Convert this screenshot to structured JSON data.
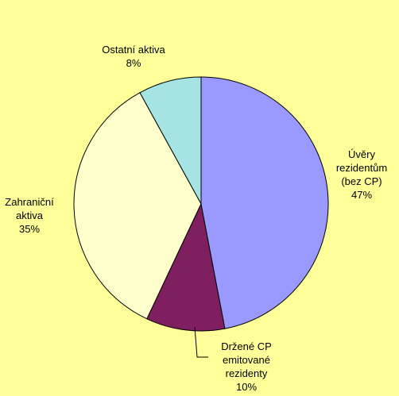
{
  "chart_data": {
    "type": "pie",
    "categories": [
      "Úvěry rezidentům (bez CP)",
      "Držené CP emitované rezidenty",
      "Zahraniční aktiva",
      "Ostatní aktiva"
    ],
    "values": [
      47,
      10,
      35,
      8
    ],
    "value_labels": [
      "47%",
      "10%",
      "35%",
      "8%"
    ],
    "colors": [
      "#9999ff",
      "#7f1f5f",
      "#ffffcc",
      "#a6e3e3"
    ]
  }
}
